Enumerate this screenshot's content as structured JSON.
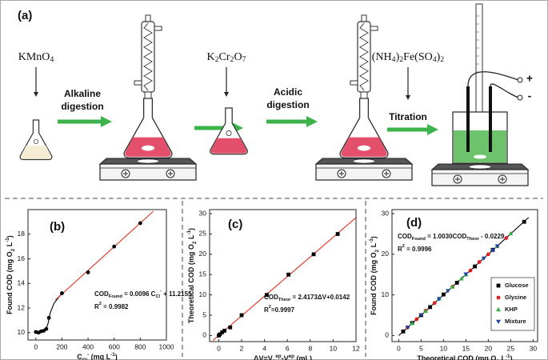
{
  "diagram": {
    "label": "(a)",
    "reagents": [
      [
        {
          "t": "KMnO"
        },
        {
          "sub": "4"
        }
      ],
      [
        {
          "t": "K"
        },
        {
          "sub": "2"
        },
        {
          "t": "Cr"
        },
        {
          "sub": "2"
        },
        {
          "t": "O"
        },
        {
          "sub": "7"
        }
      ],
      [
        {
          "t": "(NH"
        },
        {
          "sub": "4"
        },
        {
          "t": ")"
        },
        {
          "sub": "2"
        },
        {
          "t": "Fe(SO"
        },
        {
          "sub": "4"
        },
        {
          "t": ")"
        },
        {
          "sub": "2"
        }
      ]
    ],
    "steps": [
      [
        "Alkaline",
        "digestion"
      ],
      [
        "Acidic",
        "digestion"
      ],
      [
        "Titration"
      ]
    ],
    "terminals": [
      "+",
      "-"
    ]
  },
  "chart_data": [
    {
      "type": "scatter",
      "label": "(b)",
      "xlabel": [
        {
          "t": "C"
        },
        {
          "sub": "Cl"
        },
        {
          "sup": "-"
        },
        {
          "t": " (mg L"
        },
        {
          "sup": "-1"
        },
        {
          "t": ")"
        }
      ],
      "ylabel": [
        {
          "t": "Found COD (mg O"
        },
        {
          "sub": "2"
        },
        {
          "t": " L"
        },
        {
          "sup": "-1"
        },
        {
          "t": ")"
        }
      ],
      "xlim": [
        -60,
        1000
      ],
      "xticks": [
        0,
        200,
        400,
        600,
        800,
        1000
      ],
      "ylim": [
        9.4,
        20
      ],
      "yticks": [
        10,
        12,
        14,
        16,
        18
      ],
      "grid": false,
      "annotations": [
        [
          {
            "t": "COD"
          },
          {
            "sub": "Found"
          },
          {
            "t": " = 0.0096 C"
          },
          {
            "sub": "Cl"
          },
          {
            "sup": "-"
          },
          {
            "t": " + 11.2155"
          }
        ],
        [
          {
            "t": "R"
          },
          {
            "sup": "2"
          },
          {
            "t": " = 0.9982"
          }
        ]
      ],
      "series": [
        {
          "color": "#000000",
          "marker": "none",
          "line": true,
          "x": [
            0,
            40,
            80,
            95,
            110,
            140,
            200
          ],
          "values": [
            10.05,
            10.1,
            10.3,
            10.8,
            11.6,
            12.4,
            13.2
          ]
        },
        {
          "color": "#e03020",
          "marker": "none",
          "line": true,
          "x": [
            150,
            900
          ],
          "values": [
            12.66,
            19.86
          ]
        },
        {
          "color": "#000000",
          "marker": "circle",
          "line": false,
          "x": [
            0,
            20,
            40,
            60,
            80,
            100,
            200,
            400,
            600,
            800
          ],
          "values": [
            10.05,
            10.0,
            10.1,
            10.15,
            10.3,
            11.2,
            13.2,
            14.9,
            17.0,
            18.9
          ]
        }
      ]
    },
    {
      "type": "scatter",
      "label": "(c)",
      "xlabel": [
        {
          "t": "ΔV=V"
        },
        {
          "sub": "0"
        },
        {
          "sup": "ep"
        },
        {
          "t": "-V"
        },
        {
          "sup": "ep"
        },
        {
          "t": " (mL)"
        }
      ],
      "ylabel": [
        {
          "t": "Theoretical COD (mg O"
        },
        {
          "sub": "2"
        },
        {
          "t": " L"
        },
        {
          "sup": "-1"
        },
        {
          "t": ")"
        }
      ],
      "xlim": [
        -0.8,
        12
      ],
      "xticks": [
        0,
        2,
        4,
        6,
        8,
        10,
        12
      ],
      "ylim": [
        -1.5,
        31
      ],
      "yticks": [
        0,
        5,
        10,
        15,
        20,
        25,
        30
      ],
      "grid": false,
      "annotations": [
        [
          {
            "t": "COD"
          },
          {
            "sub": "Theor"
          },
          {
            "t": " = 2.4173ΔV+0.0142"
          }
        ],
        [
          {
            "t": "R"
          },
          {
            "sup": "2"
          },
          {
            "t": "=0.9997"
          }
        ]
      ],
      "series": [
        {
          "color": "#e03020",
          "marker": "none",
          "line": true,
          "x": [
            -0.5,
            12
          ],
          "values": [
            -1.19,
            29.02
          ]
        },
        {
          "color": "#000000",
          "marker": "square",
          "line": false,
          "x": [
            0,
            0.1,
            0.3,
            0.5,
            1,
            2,
            4.2,
            6.1,
            8.3,
            10.4
          ],
          "values": [
            0,
            0.3,
            0.8,
            1.2,
            2,
            5,
            10,
            15,
            20,
            25
          ]
        }
      ]
    },
    {
      "type": "scatter",
      "label": "(d)",
      "xlabel": [
        {
          "t": "Theoretical COD (mg O"
        },
        {
          "sub": "2"
        },
        {
          "t": " L"
        },
        {
          "sup": "-1"
        },
        {
          "t": ")"
        }
      ],
      "ylabel": [
        {
          "t": "Found COD (mg O"
        },
        {
          "sub": "2"
        },
        {
          "t": " L"
        },
        {
          "sup": "-1"
        },
        {
          "t": ")"
        }
      ],
      "xlim": [
        -1.5,
        31
      ],
      "xticks": [
        0,
        5,
        10,
        15,
        20,
        25,
        30
      ],
      "ylim": [
        -1.5,
        31
      ],
      "yticks": [
        0,
        10,
        20,
        30
      ],
      "grid": false,
      "legend": "lower right",
      "annotations": [
        [
          {
            "t": "COD"
          },
          {
            "sub": "Found"
          },
          {
            "t": " = 1.0030COD"
          },
          {
            "sub": "Theor"
          },
          {
            "t": " - 0.0229"
          }
        ],
        [
          {
            "t": "R"
          },
          {
            "sup": "2"
          },
          {
            "t": " = 0.9996"
          }
        ]
      ],
      "series": [
        {
          "color": "#000000",
          "marker": "none",
          "line": true,
          "x": [
            0,
            29
          ],
          "values": [
            -0.02,
            29.06
          ]
        },
        {
          "name": "Glucose",
          "color": "#000000",
          "marker": "square",
          "line": false,
          "x": [
            1,
            3,
            5,
            7,
            10,
            13,
            17,
            21,
            28
          ],
          "values": [
            1.0,
            3.1,
            5.0,
            7.0,
            10.1,
            13.0,
            17.0,
            21.1,
            28.0
          ]
        },
        {
          "name": "Glycine",
          "color": "#e02020",
          "marker": "circle",
          "line": false,
          "x": [
            2,
            4,
            6,
            8,
            12,
            16,
            18,
            20,
            24
          ],
          "values": [
            2.0,
            4.0,
            6.1,
            8.0,
            12.0,
            16.0,
            18.1,
            20.0,
            24.0
          ]
        },
        {
          "name": "KHP",
          "color": "#30b040",
          "marker": "triangle",
          "line": false,
          "x": [
            3,
            6,
            9,
            12,
            14,
            15,
            22,
            25
          ],
          "values": [
            3.0,
            6.0,
            9.1,
            12.0,
            14.0,
            15.0,
            22.0,
            25.1
          ]
        },
        {
          "name": "Mixture",
          "color": "#2040a0",
          "marker": "triangle-down",
          "line": false,
          "x": [
            2,
            5,
            9,
            11,
            15,
            19,
            21,
            22
          ],
          "values": [
            2.0,
            5.0,
            9.0,
            11.0,
            15.1,
            19.0,
            21.0,
            22.0
          ]
        }
      ]
    }
  ]
}
